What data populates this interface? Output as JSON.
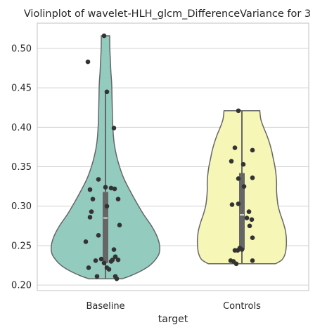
{
  "chart_data": {
    "type": "violin",
    "title": "Violinplot of wavelet-HLH_glcm_DifferenceVariance for 3",
    "xlabel": "target",
    "ylabel": "",
    "categories": [
      "Baseline",
      "Controls"
    ],
    "ylim": [
      0.193,
      0.532
    ],
    "yticks": [
      0.2,
      0.25,
      0.3,
      0.35,
      0.4,
      0.45,
      0.5
    ],
    "ytick_labels": [
      "0.20",
      "0.25",
      "0.30",
      "0.35",
      "0.40",
      "0.45",
      "0.50"
    ],
    "grid": "horizontal",
    "colors": {
      "Baseline": "#93cbbf",
      "Controls": "#f6f6b7",
      "outline": "#666666",
      "box": "#666666",
      "median": "#ffffff",
      "points": "#333333",
      "grid": "#d3d3d3",
      "axes_edge": "#cccccc"
    },
    "violins": [
      {
        "name": "Baseline",
        "min": 0.208,
        "max": 0.516,
        "profile": [
          [
            0.208,
            0.31
          ],
          [
            0.212,
            0.47
          ],
          [
            0.218,
            0.66
          ],
          [
            0.225,
            0.82
          ],
          [
            0.232,
            0.92
          ],
          [
            0.24,
            0.99
          ],
          [
            0.25,
            1.0
          ],
          [
            0.262,
            0.95
          ],
          [
            0.275,
            0.85
          ],
          [
            0.29,
            0.7
          ],
          [
            0.305,
            0.57
          ],
          [
            0.32,
            0.45
          ],
          [
            0.335,
            0.34
          ],
          [
            0.35,
            0.26
          ],
          [
            0.365,
            0.2
          ],
          [
            0.38,
            0.16
          ],
          [
            0.395,
            0.14
          ],
          [
            0.41,
            0.13
          ],
          [
            0.425,
            0.125
          ],
          [
            0.44,
            0.12
          ],
          [
            0.455,
            0.115
          ],
          [
            0.47,
            0.1
          ],
          [
            0.485,
            0.09
          ],
          [
            0.5,
            0.08
          ],
          [
            0.516,
            0.077
          ]
        ],
        "box": {
          "q1": 0.228,
          "median": 0.285,
          "q3": 0.318,
          "whisker_low": 0.208,
          "whisker_high": 0.445
        },
        "points": [
          [
            -0.02,
            0.516
          ],
          [
            -0.25,
            0.483
          ],
          [
            0.02,
            0.445
          ],
          [
            0.12,
            0.399
          ],
          [
            -0.1,
            0.334
          ],
          [
            -0.22,
            0.321
          ],
          [
            0.0,
            0.324
          ],
          [
            0.08,
            0.323
          ],
          [
            0.13,
            0.322
          ],
          [
            -0.18,
            0.309
          ],
          [
            0.18,
            0.309
          ],
          [
            -0.2,
            0.293
          ],
          [
            -0.22,
            0.286
          ],
          [
            0.02,
            0.3
          ],
          [
            0.2,
            0.276
          ],
          [
            -0.1,
            0.263
          ],
          [
            -0.28,
            0.255
          ],
          [
            0.12,
            0.245
          ],
          [
            0.14,
            0.236
          ],
          [
            0.1,
            0.232
          ],
          [
            -0.06,
            0.233
          ],
          [
            0.18,
            0.232
          ],
          [
            -0.14,
            0.231
          ],
          [
            -0.02,
            0.228
          ],
          [
            0.08,
            0.23
          ],
          [
            -0.24,
            0.222
          ],
          [
            0.02,
            0.222
          ],
          [
            0.05,
            0.22
          ],
          [
            -0.12,
            0.211
          ],
          [
            0.14,
            0.211
          ],
          [
            0.16,
            0.208
          ]
        ]
      },
      {
        "name": "Controls",
        "min": 0.227,
        "max": 0.421,
        "profile": [
          [
            0.227,
            0.62
          ],
          [
            0.232,
            0.74
          ],
          [
            0.24,
            0.8
          ],
          [
            0.25,
            0.82
          ],
          [
            0.26,
            0.82
          ],
          [
            0.27,
            0.8
          ],
          [
            0.28,
            0.76
          ],
          [
            0.29,
            0.71
          ],
          [
            0.3,
            0.67
          ],
          [
            0.31,
            0.65
          ],
          [
            0.32,
            0.64
          ],
          [
            0.33,
            0.64
          ],
          [
            0.34,
            0.63
          ],
          [
            0.35,
            0.61
          ],
          [
            0.36,
            0.58
          ],
          [
            0.37,
            0.55
          ],
          [
            0.38,
            0.51
          ],
          [
            0.39,
            0.46
          ],
          [
            0.4,
            0.4
          ],
          [
            0.41,
            0.35
          ],
          [
            0.421,
            0.33
          ]
        ],
        "box": {
          "q1": 0.245,
          "median": 0.289,
          "q3": 0.342,
          "whisker_low": 0.227,
          "whisker_high": 0.421
        },
        "points": [
          [
            -0.05,
            0.421
          ],
          [
            0.15,
            0.371
          ],
          [
            -0.1,
            0.374
          ],
          [
            -0.15,
            0.357
          ],
          [
            0.02,
            0.353
          ],
          [
            0.15,
            0.336
          ],
          [
            -0.05,
            0.335
          ],
          [
            0.03,
            0.325
          ],
          [
            -0.05,
            0.303
          ],
          [
            -0.14,
            0.302
          ],
          [
            0.1,
            0.293
          ],
          [
            0.07,
            0.285
          ],
          [
            0.14,
            0.283
          ],
          [
            0.11,
            0.275
          ],
          [
            0.15,
            0.26
          ],
          [
            -0.1,
            0.244
          ],
          [
            -0.06,
            0.244
          ],
          [
            0.0,
            0.245
          ],
          [
            -0.03,
            0.247
          ],
          [
            -0.16,
            0.231
          ],
          [
            -0.12,
            0.23
          ],
          [
            0.15,
            0.231
          ],
          [
            -0.08,
            0.227
          ]
        ]
      }
    ]
  }
}
